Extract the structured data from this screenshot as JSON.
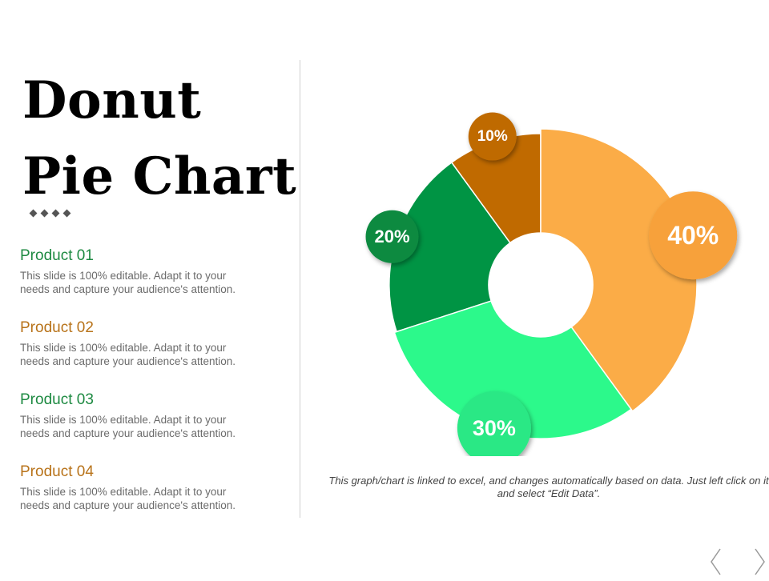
{
  "title": {
    "line1": "Donut",
    "line2": "Pie Chart"
  },
  "products": [
    {
      "name": "Product 01",
      "color": "#1e8a42",
      "description": "This slide is 100% editable. Adapt it to your needs and capture your audience's attention."
    },
    {
      "name": "Product 02",
      "color": "#b8731a",
      "description": "This slide is 100% editable. Adapt it to your needs and capture your audience's attention."
    },
    {
      "name": "Product 03",
      "color": "#1e8a42",
      "description": "This slide is 100% editable. Adapt it to your needs and capture your audience's attention."
    },
    {
      "name": "Product 04",
      "color": "#b8731a",
      "description": "This slide is 100% editable. Adapt it to your needs and capture your audience's attention."
    }
  ],
  "chart_data": {
    "type": "pie",
    "variant": "donut",
    "slices": [
      {
        "label": "20%",
        "value": 20,
        "color": "#009444",
        "bubble_color": "#0a8a41"
      },
      {
        "label": "10%",
        "value": 10,
        "color": "#c06a00",
        "bubble_color": "#bf6a02"
      },
      {
        "label": "40%",
        "value": 40,
        "color": "#fbac47",
        "bubble_color": "#f7a13a"
      },
      {
        "label": "30%",
        "value": 30,
        "color": "#2cf98b",
        "bubble_color": "#29e885"
      }
    ]
  },
  "footnote": "This graph/chart is linked to excel, and changes automatically based on data. Just left click on it and select “Edit Data”.",
  "nav": {
    "prev_icon": "chevron-left-icon",
    "next_icon": "chevron-right-icon"
  }
}
